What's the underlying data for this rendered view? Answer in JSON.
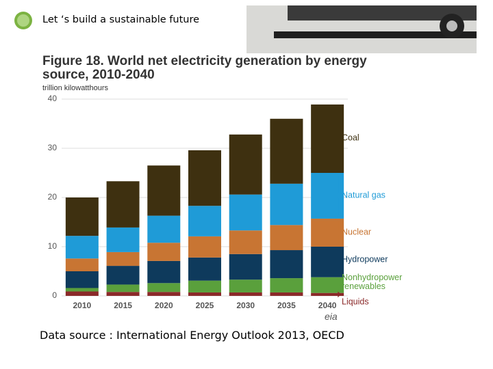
{
  "header": {
    "title": "Let ‘s build  a sustainable future"
  },
  "chart_data": {
    "type": "stacked-bar",
    "title": "Figure 18. World net electricity generation by energy source, 2010-2040",
    "y_label": "trillion kilowatthours",
    "categories": [
      "2010",
      "2015",
      "2020",
      "2025",
      "2030",
      "2035",
      "2040"
    ],
    "series": [
      {
        "name": "Liquids",
        "color": "#8b2a2a",
        "values": [
          0.9,
          0.8,
          0.8,
          0.7,
          0.7,
          0.7,
          0.6
        ]
      },
      {
        "name": "Nonhydropower renewables",
        "color": "#5aa03c",
        "values": [
          0.7,
          1.5,
          1.8,
          2.4,
          2.6,
          2.9,
          3.2
        ]
      },
      {
        "name": "Hydropower",
        "color": "#0e3a5c",
        "values": [
          3.4,
          3.8,
          4.5,
          4.7,
          5.2,
          5.7,
          6.2
        ]
      },
      {
        "name": "Nuclear",
        "color": "#c87533",
        "values": [
          2.6,
          2.8,
          3.7,
          4.3,
          4.8,
          5.1,
          5.7
        ]
      },
      {
        "name": "Natural gas",
        "color": "#1f9bd7",
        "values": [
          4.6,
          5.0,
          5.5,
          6.2,
          7.3,
          8.4,
          9.3
        ]
      },
      {
        "name": "Coal",
        "color": "#3e3010",
        "values": [
          7.8,
          9.4,
          10.2,
          11.3,
          12.2,
          13.2,
          13.9
        ]
      }
    ],
    "ylim": [
      0,
      40
    ],
    "yticks": [
      0,
      10,
      20,
      30,
      40
    ],
    "grid": true,
    "source_logo": "eia"
  },
  "footer": {
    "source": "Data source : International Energy Outlook 2013, OECD"
  }
}
